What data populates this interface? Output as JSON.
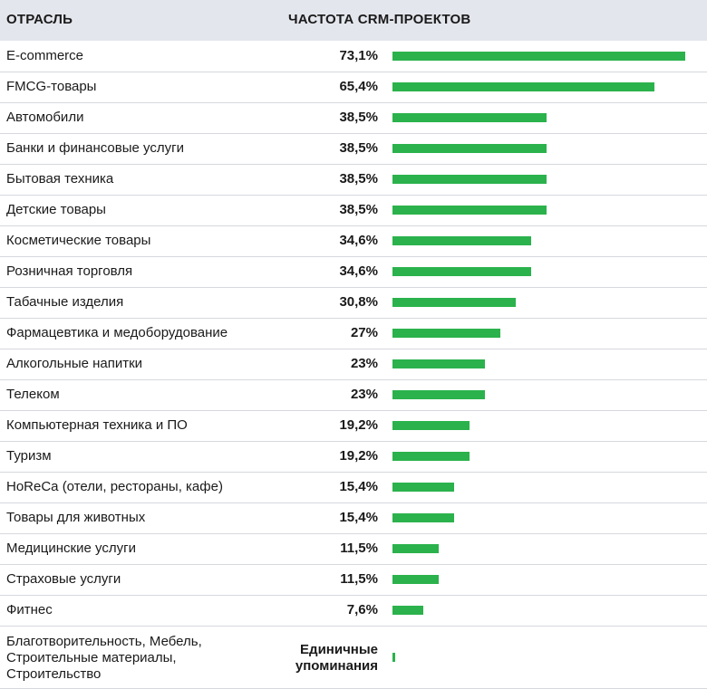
{
  "header": {
    "category_label": "ОТРАСЛЬ",
    "value_label": "ЧАСТОТА CRM-ПРОЕКТОВ"
  },
  "colors": {
    "bar": "#2bb24c",
    "header_bg": "#e4e6ed",
    "separator": "#d6d8de"
  },
  "chart_data": {
    "type": "bar",
    "orientation": "horizontal",
    "xlabel": "ЧАСТОТА CRM-ПРОЕКТОВ",
    "ylabel": "ОТРАСЛЬ",
    "unit": "%",
    "categories": [
      "E-commerce",
      "FMCG-товары",
      "Автомобили",
      "Банки и финансовые услуги",
      "Бытовая техника",
      "Детские товары",
      "Косметические товары",
      "Розничная торговля",
      "Табачные изделия",
      "Фармацевтика и медоборудование",
      "Алкогольные напитки",
      "Телеком",
      "Компьютерная техника и ПО",
      "Туризм",
      "HoReCa (отели, рестораны, кафе)",
      "Товары для животных",
      "Медицинские услуги",
      "Страховые услуги",
      "Фитнес",
      "Благотворительность, Мебель, Строительные материалы, Строительство"
    ],
    "values": [
      73.1,
      65.4,
      38.5,
      38.5,
      38.5,
      38.5,
      34.6,
      34.6,
      30.8,
      27,
      23,
      23,
      19.2,
      19.2,
      15.4,
      15.4,
      11.5,
      11.5,
      7.6,
      0.6
    ],
    "value_labels": [
      "73,1%",
      "65,4%",
      "38,5%",
      "38,5%",
      "38,5%",
      "38,5%",
      "34,6%",
      "34,6%",
      "30,8%",
      "27%",
      "23%",
      "23%",
      "19,2%",
      "19,2%",
      "15,4%",
      "15,4%",
      "11,5%",
      "11,5%",
      "7,6%",
      "Единичные упоминания"
    ],
    "category_lines_last": [
      "Благотворительность, Мебель,",
      "Строительные материалы,",
      "Строительство"
    ],
    "value_lines_last": [
      "Единичные",
      "упоминания"
    ],
    "xlim": [
      0,
      73.1
    ],
    "grid": false,
    "legend": "none"
  }
}
